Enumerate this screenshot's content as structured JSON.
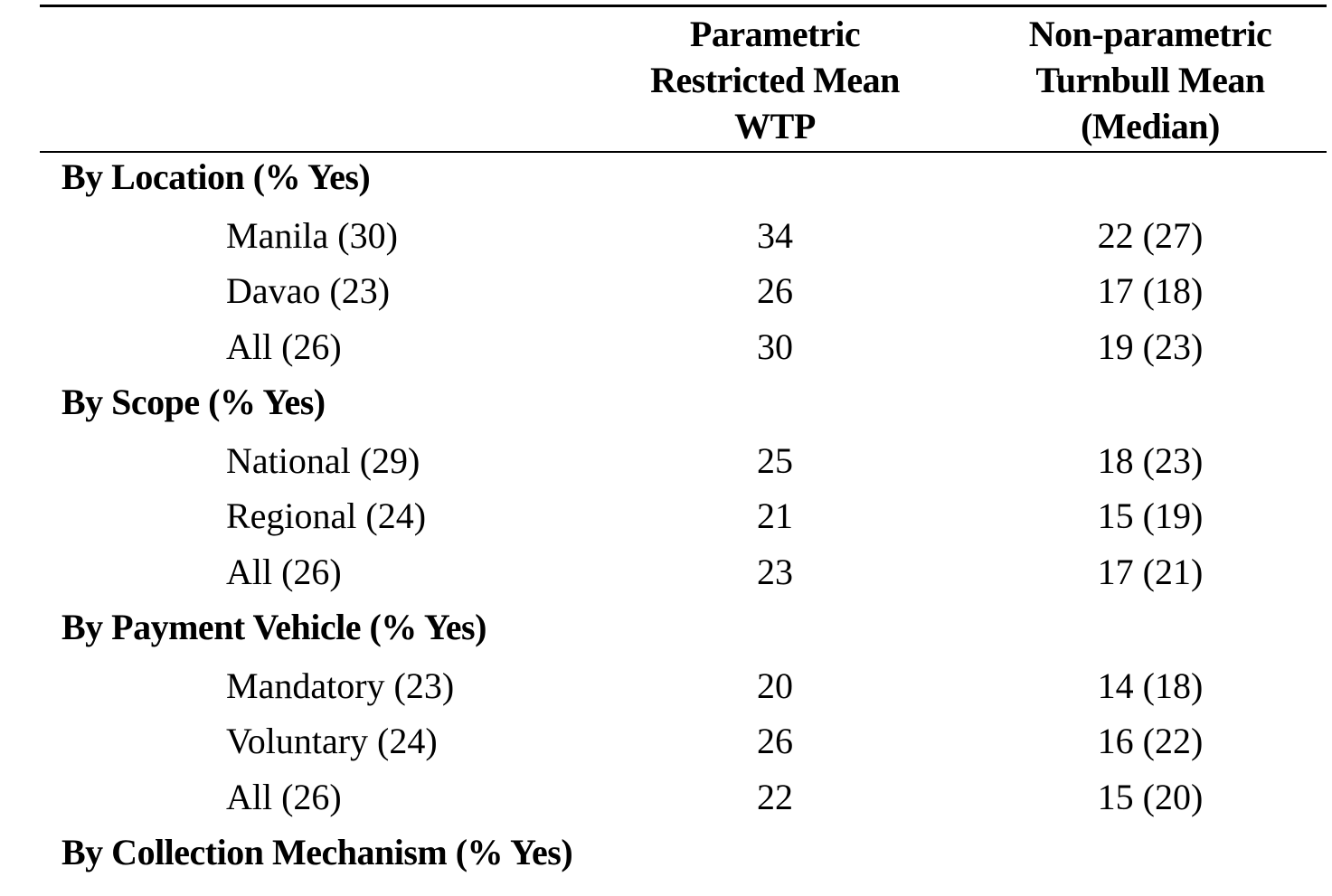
{
  "table": {
    "headers": [
      [
        "Parametric",
        "Restricted Mean",
        "WTP"
      ],
      [
        "Non-parametric",
        "Turnbull Mean",
        "(Median)"
      ]
    ],
    "sections": [
      {
        "title": "By Location (% Yes)",
        "rows": [
          [
            "Manila (30)",
            34,
            "22 (27)"
          ],
          [
            "Davao (23)",
            26,
            "17 (18)"
          ],
          [
            "All (26)",
            30,
            "19 (23)"
          ]
        ]
      },
      {
        "title": "By Scope (% Yes)",
        "rows": [
          [
            "National (29)",
            25,
            "18 (23)"
          ],
          [
            "Regional (24)",
            21,
            "15 (19)"
          ],
          [
            "All (26)",
            23,
            "17 (21)"
          ]
        ]
      },
      {
        "title": "By Payment Vehicle (% Yes)",
        "rows": [
          [
            "Mandatory (23)",
            20,
            "14 (18)"
          ],
          [
            "Voluntary (24)",
            26,
            "16 (22)"
          ],
          [
            "All (26)",
            22,
            "15 (20)"
          ]
        ]
      },
      {
        "title": "By Collection Mechanism (% Yes)",
        "rows": []
      }
    ]
  }
}
